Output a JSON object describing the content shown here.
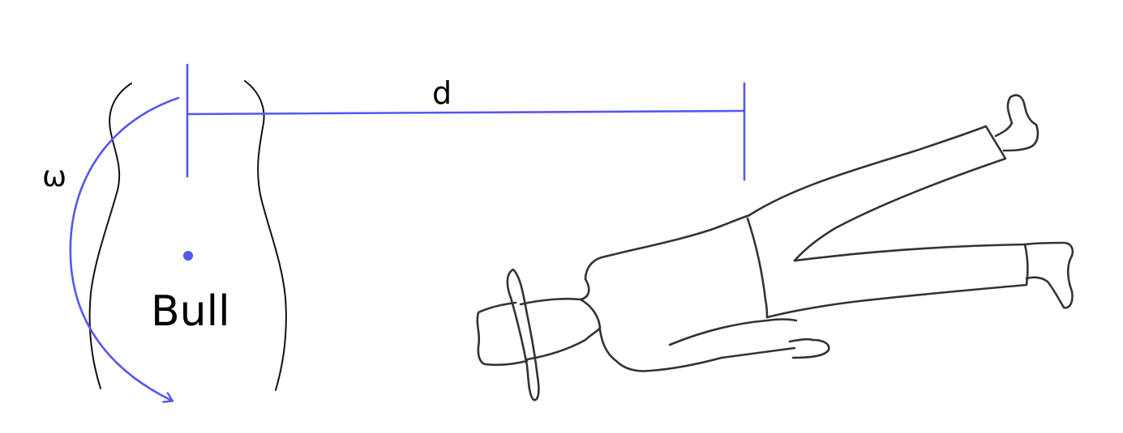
{
  "labels": {
    "omega": "ω",
    "distance": "d",
    "bull": "Bull"
  },
  "colors": {
    "annotation": "#5656f0",
    "sketch_bull": "#111111",
    "sketch_rider": "#333333",
    "text": "#000000"
  }
}
